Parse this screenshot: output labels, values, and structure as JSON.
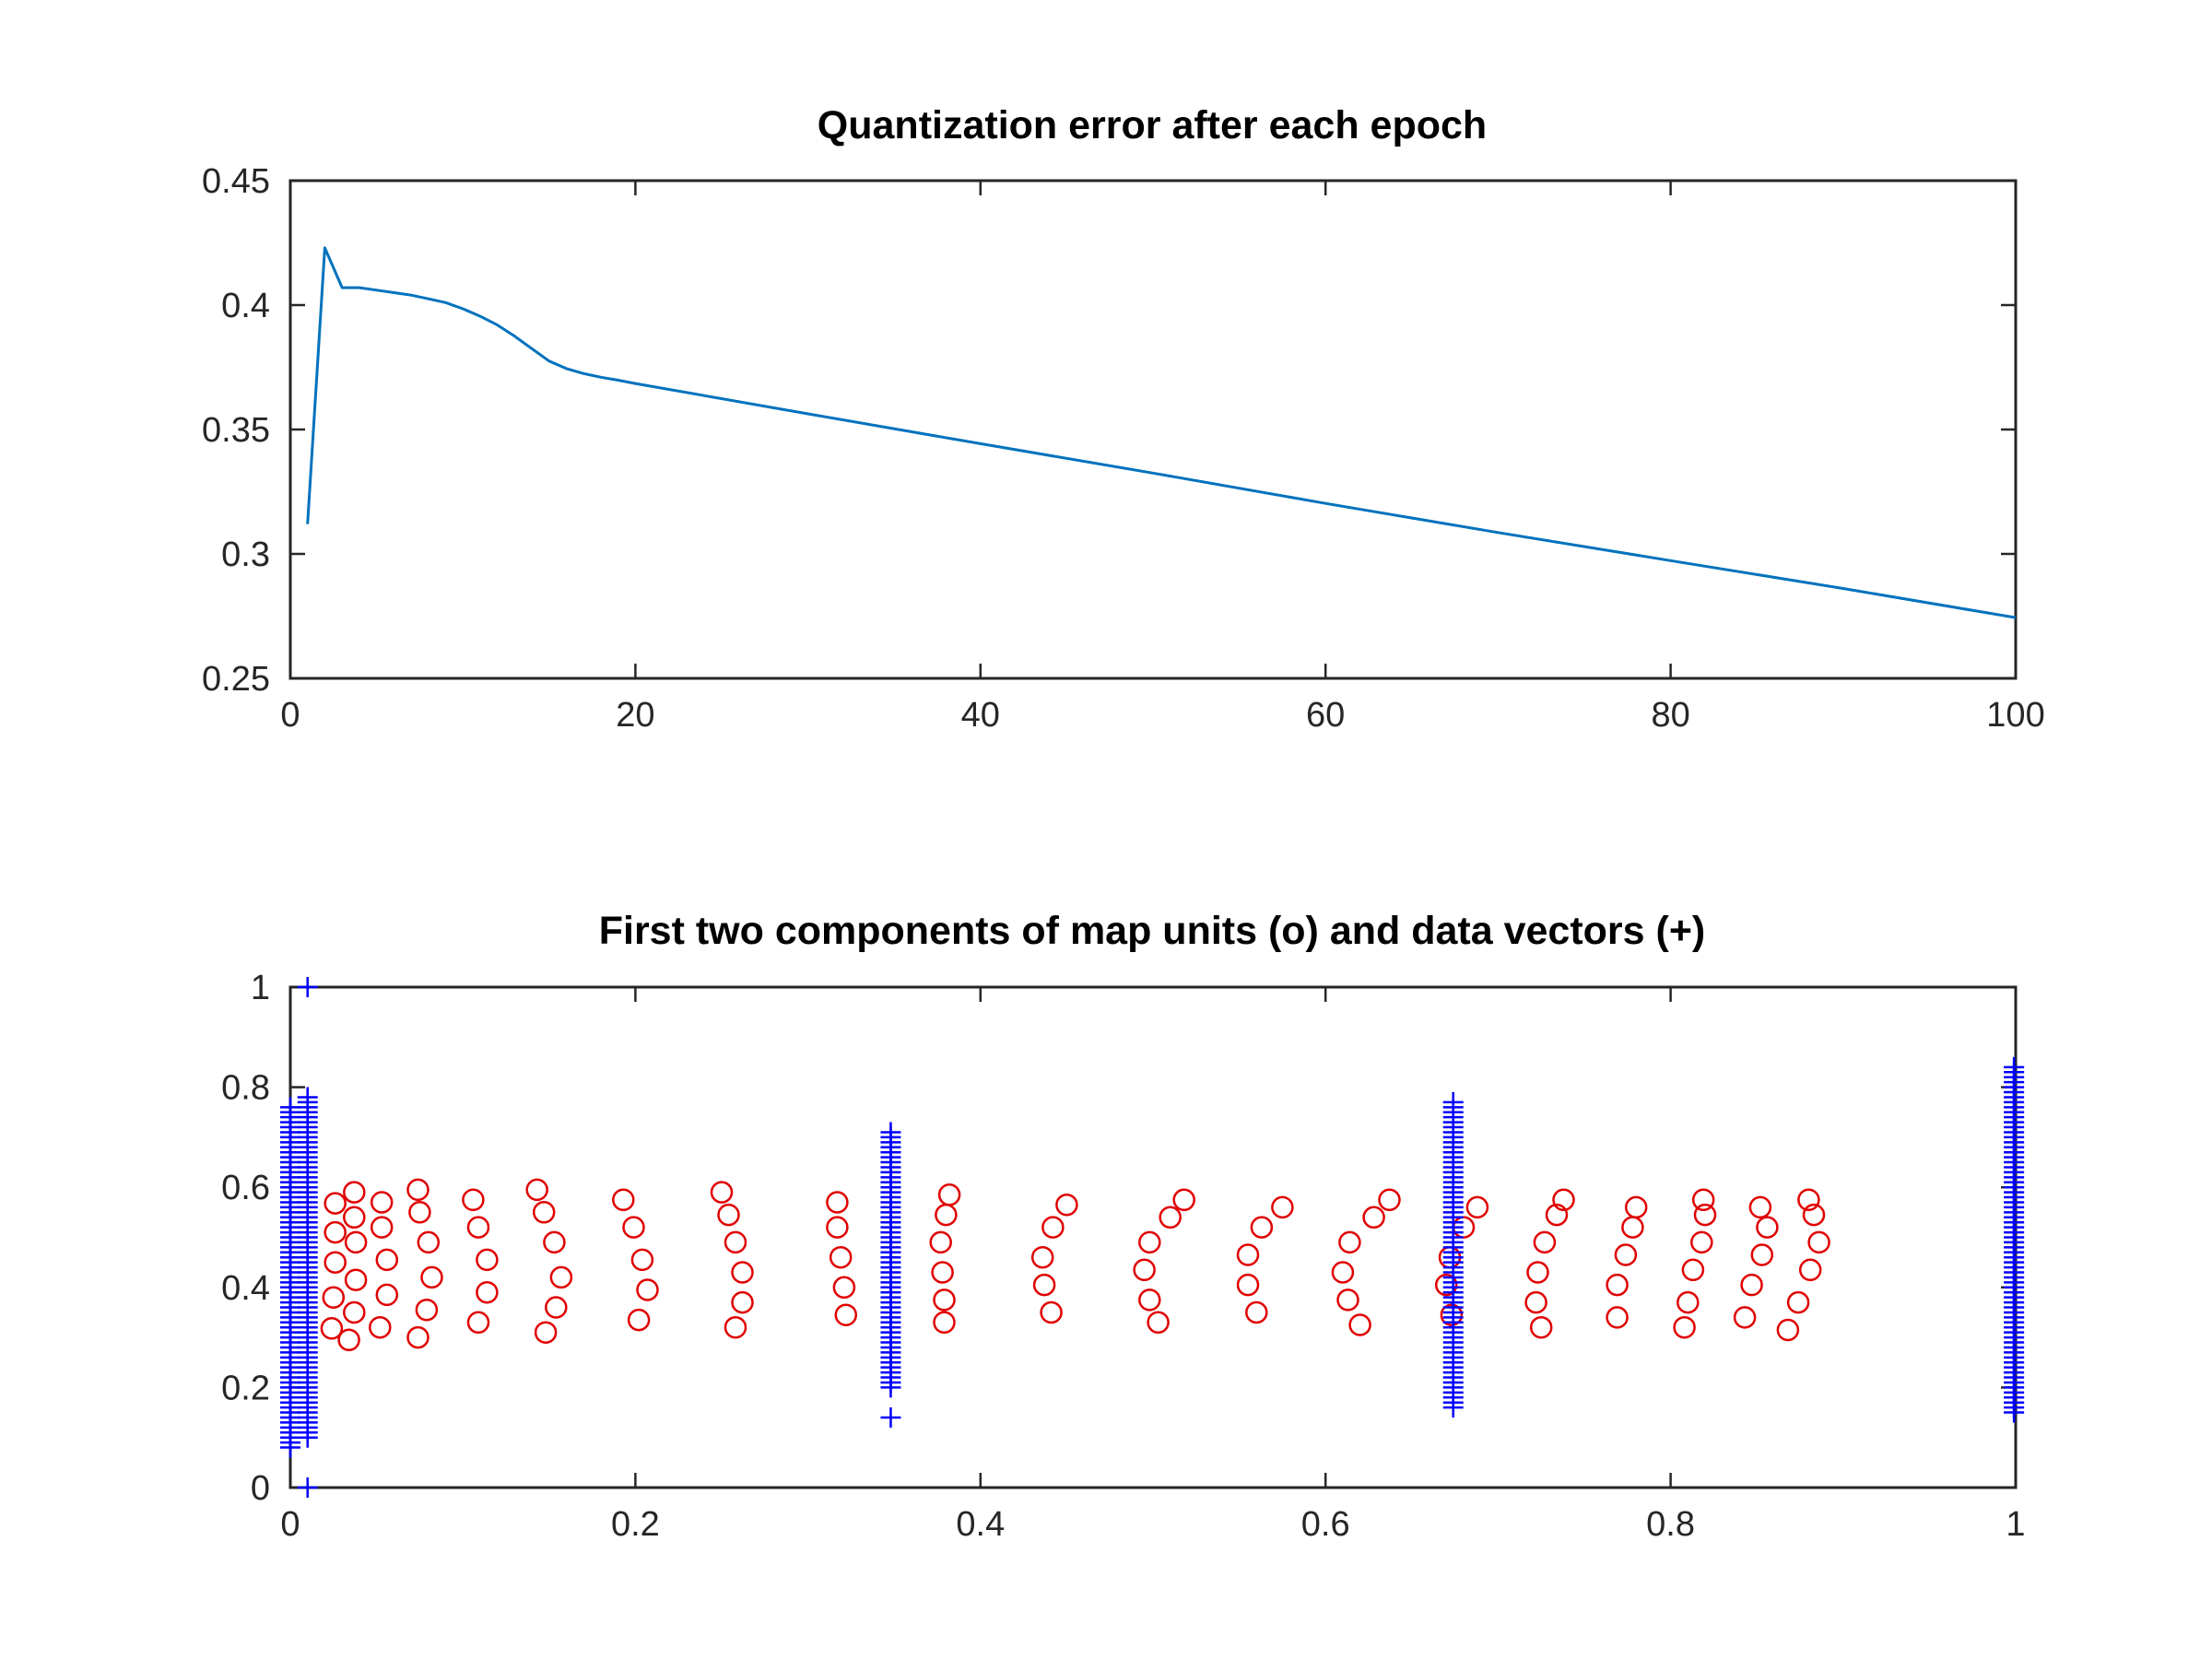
{
  "chart_data": [
    {
      "type": "line",
      "title": "Quantization error after each epoch",
      "xlabel": "",
      "ylabel": "",
      "xlim": [
        0,
        100
      ],
      "ylim": [
        0.25,
        0.45
      ],
      "xticks": [
        0,
        20,
        40,
        60,
        80,
        100
      ],
      "xtick_labels": [
        "0",
        "20",
        "40",
        "60",
        "80",
        "100"
      ],
      "yticks": [
        0.25,
        0.3,
        0.35,
        0.4,
        0.45
      ],
      "ytick_labels": [
        "0.25",
        "0.3",
        "0.35",
        "0.4",
        "0.45"
      ],
      "grid": false,
      "series": [
        {
          "name": "quantization error",
          "color": "#0072BD",
          "x": [
            1,
            2,
            3,
            4,
            5,
            6,
            7,
            8,
            9,
            10,
            11,
            12,
            13,
            14,
            15,
            16,
            17,
            18,
            19,
            20,
            30,
            40,
            50,
            60,
            70,
            80,
            90,
            100
          ],
          "y": [
            0.312,
            0.423,
            0.407,
            0.407,
            0.406,
            0.405,
            0.404,
            0.4025,
            0.401,
            0.3985,
            0.3955,
            0.392,
            0.3875,
            0.3825,
            0.3775,
            0.3745,
            0.3725,
            0.371,
            0.3698,
            0.3685,
            0.3563,
            0.3443,
            0.3325,
            0.3203,
            0.3086,
            0.2973,
            0.2861,
            0.2744
          ]
        }
      ]
    },
    {
      "type": "scatter",
      "title": "First two components of map units (o) and data vectors (+)",
      "xlabel": "",
      "ylabel": "",
      "xlim": [
        0,
        1
      ],
      "ylim": [
        0,
        1
      ],
      "xticks": [
        0,
        0.2,
        0.4,
        0.6,
        0.8,
        1
      ],
      "xtick_labels": [
        "0",
        "0.2",
        "0.4",
        "0.6",
        "0.8",
        "1"
      ],
      "yticks": [
        0,
        0.2,
        0.4,
        0.6,
        0.8,
        1
      ],
      "ytick_labels": [
        "0",
        "0.2",
        "0.4",
        "0.6",
        "0.8",
        "1"
      ],
      "grid": false,
      "series": [
        {
          "name": "map units (o)",
          "marker": "circle",
          "color": "#E00000",
          "points": [
            [
              0.026,
              0.568
            ],
            [
              0.026,
              0.51
            ],
            [
              0.026,
              0.45
            ],
            [
              0.025,
              0.38
            ],
            [
              0.024,
              0.318
            ],
            [
              0.037,
              0.59
            ],
            [
              0.037,
              0.54
            ],
            [
              0.038,
              0.49
            ],
            [
              0.038,
              0.415
            ],
            [
              0.037,
              0.35
            ],
            [
              0.034,
              0.295
            ],
            [
              0.053,
              0.57
            ],
            [
              0.053,
              0.52
            ],
            [
              0.056,
              0.455
            ],
            [
              0.056,
              0.385
            ],
            [
              0.052,
              0.32
            ],
            [
              0.074,
              0.595
            ],
            [
              0.075,
              0.55
            ],
            [
              0.08,
              0.49
            ],
            [
              0.082,
              0.42
            ],
            [
              0.079,
              0.355
            ],
            [
              0.074,
              0.3
            ],
            [
              0.106,
              0.575
            ],
            [
              0.109,
              0.52
            ],
            [
              0.114,
              0.455
            ],
            [
              0.114,
              0.39
            ],
            [
              0.109,
              0.33
            ],
            [
              0.143,
              0.595
            ],
            [
              0.147,
              0.55
            ],
            [
              0.153,
              0.49
            ],
            [
              0.157,
              0.42
            ],
            [
              0.154,
              0.36
            ],
            [
              0.148,
              0.31
            ],
            [
              0.193,
              0.575
            ],
            [
              0.199,
              0.52
            ],
            [
              0.204,
              0.455
            ],
            [
              0.207,
              0.395
            ],
            [
              0.202,
              0.335
            ],
            [
              0.25,
              0.59
            ],
            [
              0.254,
              0.545
            ],
            [
              0.258,
              0.49
            ],
            [
              0.262,
              0.43
            ],
            [
              0.262,
              0.37
            ],
            [
              0.258,
              0.32
            ],
            [
              0.317,
              0.57
            ],
            [
              0.317,
              0.52
            ],
            [
              0.319,
              0.46
            ],
            [
              0.321,
              0.4
            ],
            [
              0.322,
              0.345
            ],
            [
              0.382,
              0.585
            ],
            [
              0.38,
              0.545
            ],
            [
              0.377,
              0.49
            ],
            [
              0.378,
              0.43
            ],
            [
              0.379,
              0.375
            ],
            [
              0.379,
              0.33
            ],
            [
              0.45,
              0.565
            ],
            [
              0.442,
              0.52
            ],
            [
              0.436,
              0.46
            ],
            [
              0.437,
              0.405
            ],
            [
              0.441,
              0.35
            ],
            [
              0.518,
              0.575
            ],
            [
              0.51,
              0.54
            ],
            [
              0.498,
              0.49
            ],
            [
              0.495,
              0.435
            ],
            [
              0.498,
              0.375
            ],
            [
              0.503,
              0.33
            ],
            [
              0.575,
              0.56
            ],
            [
              0.563,
              0.52
            ],
            [
              0.555,
              0.465
            ],
            [
              0.555,
              0.405
            ],
            [
              0.56,
              0.35
            ],
            [
              0.637,
              0.575
            ],
            [
              0.628,
              0.54
            ],
            [
              0.614,
              0.49
            ],
            [
              0.61,
              0.43
            ],
            [
              0.613,
              0.375
            ],
            [
              0.62,
              0.325
            ],
            [
              0.688,
              0.56
            ],
            [
              0.68,
              0.52
            ],
            [
              0.672,
              0.46
            ],
            [
              0.67,
              0.405
            ],
            [
              0.673,
              0.345
            ],
            [
              0.738,
              0.575
            ],
            [
              0.734,
              0.545
            ],
            [
              0.727,
              0.49
            ],
            [
              0.723,
              0.43
            ],
            [
              0.722,
              0.37
            ],
            [
              0.725,
              0.32
            ],
            [
              0.78,
              0.56
            ],
            [
              0.778,
              0.52
            ],
            [
              0.774,
              0.465
            ],
            [
              0.769,
              0.405
            ],
            [
              0.769,
              0.34
            ],
            [
              0.819,
              0.575
            ],
            [
              0.82,
              0.545
            ],
            [
              0.818,
              0.49
            ],
            [
              0.813,
              0.435
            ],
            [
              0.81,
              0.37
            ],
            [
              0.808,
              0.32
            ],
            [
              0.852,
              0.56
            ],
            [
              0.856,
              0.52
            ],
            [
              0.853,
              0.465
            ],
            [
              0.847,
              0.405
            ],
            [
              0.843,
              0.34
            ],
            [
              0.88,
              0.575
            ],
            [
              0.883,
              0.545
            ],
            [
              0.886,
              0.49
            ],
            [
              0.881,
              0.435
            ],
            [
              0.874,
              0.37
            ],
            [
              0.868,
              0.315
            ]
          ]
        },
        {
          "name": "data vectors (+)",
          "marker": "plus",
          "color": "#0000FF",
          "groups": [
            {
              "x": 0.0,
              "ymin": 0.08,
              "ymax": 0.76,
              "step": 0.01
            },
            {
              "x": 0.01,
              "ymin": 0.1,
              "ymax": 0.78,
              "step": 0.01
            },
            {
              "x": 0.348,
              "ymin": 0.2,
              "ymax": 0.71,
              "step": 0.01
            },
            {
              "x": 0.674,
              "ymin": 0.16,
              "ymax": 0.77,
              "step": 0.01
            },
            {
              "x": 0.999,
              "ymin": 0.15,
              "ymax": 0.84,
              "step": 0.01
            }
          ],
          "extra_points": [
            [
              0.01,
              1.0
            ],
            [
              0.01,
              0.0
            ],
            [
              0.348,
              0.14
            ]
          ]
        }
      ]
    }
  ]
}
